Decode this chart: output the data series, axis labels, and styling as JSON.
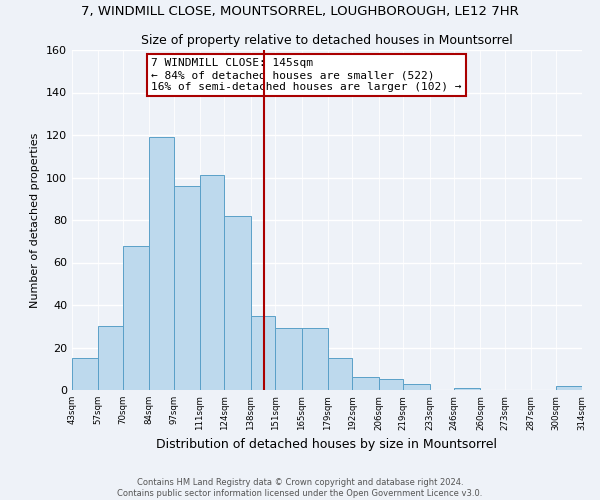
{
  "title": "7, WINDMILL CLOSE, MOUNTSORREL, LOUGHBOROUGH, LE12 7HR",
  "subtitle": "Size of property relative to detached houses in Mountsorrel",
  "xlabel": "Distribution of detached houses by size in Mountsorrel",
  "ylabel": "Number of detached properties",
  "bin_edges": [
    43,
    57,
    70,
    84,
    97,
    111,
    124,
    138,
    151,
    165,
    179,
    192,
    206,
    219,
    233,
    246,
    260,
    273,
    287,
    300,
    314
  ],
  "bar_heights": [
    15,
    30,
    68,
    119,
    96,
    101,
    82,
    35,
    29,
    29,
    15,
    6,
    5,
    3,
    0,
    1,
    0,
    0,
    0,
    2
  ],
  "bar_color": "#bdd9ed",
  "bar_edge_color": "#5aa0c8",
  "vline_x": 145,
  "vline_color": "#aa0000",
  "annotation_title": "7 WINDMILL CLOSE: 145sqm",
  "annotation_line1": "← 84% of detached houses are smaller (522)",
  "annotation_line2": "16% of semi-detached houses are larger (102) →",
  "annotation_box_edge_color": "#aa0000",
  "ylim": [
    0,
    160
  ],
  "tick_labels": [
    "43sqm",
    "57sqm",
    "70sqm",
    "84sqm",
    "97sqm",
    "111sqm",
    "124sqm",
    "138sqm",
    "151sqm",
    "165sqm",
    "179sqm",
    "192sqm",
    "206sqm",
    "219sqm",
    "233sqm",
    "246sqm",
    "260sqm",
    "273sqm",
    "287sqm",
    "300sqm",
    "314sqm"
  ],
  "footer_line1": "Contains HM Land Registry data © Crown copyright and database right 2024.",
  "footer_line2": "Contains public sector information licensed under the Open Government Licence v3.0.",
  "background_color": "#eef2f8",
  "grid_color": "#ffffff"
}
